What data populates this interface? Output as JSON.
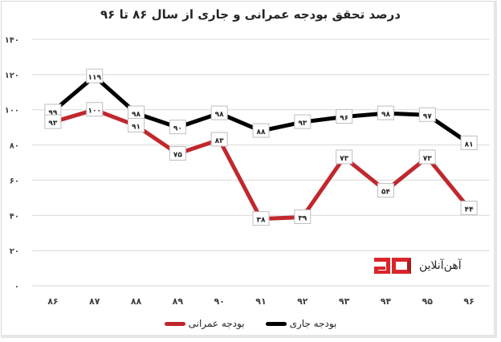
{
  "title": "درصد تحقق بودجه عمرانی و جاری از سال ۸۶ تا ۹۶",
  "legend": {
    "items": [
      {
        "label": "بودجه جاری",
        "color": "#000000"
      },
      {
        "label": "بودجه عمرانی",
        "color": "#c0282d"
      }
    ]
  },
  "brand": {
    "name": "آهن‌آنلاین",
    "color": "#d9262c"
  },
  "y_ticks": [
    "۱۴۰",
    "۱۲۰",
    "۱۰۰",
    "۸۰",
    "۶۰",
    "۴۰",
    "۲۰",
    "۰"
  ],
  "chart_data": {
    "type": "line",
    "title": "درصد تحقق بودجه عمرانی و جاری از سال ۸۶ تا ۹۶",
    "xlabel": "",
    "ylabel": "",
    "ylim": [
      0,
      140
    ],
    "grid": true,
    "legend_position": "bottom",
    "categories": [
      "۸۶",
      "۸۷",
      "۸۸",
      "۸۹",
      "۹۰",
      "۹۱",
      "۹۲",
      "۹۳",
      "۹۴",
      "۹۵",
      "۹۶"
    ],
    "series": [
      {
        "name": "بودجه جاری",
        "color": "#000000",
        "values": [
          99,
          119,
          98,
          90,
          98,
          88,
          93,
          96,
          98,
          97,
          81
        ],
        "labels": [
          "۹۹",
          "۱۱۹",
          "۹۸",
          "۹۰",
          "۹۸",
          "۸۸",
          "۹۳",
          "۹۶",
          "۹۸",
          "۹۷",
          "۸۱"
        ]
      },
      {
        "name": "بودجه عمرانی",
        "color": "#c0282d",
        "values": [
          93,
          100,
          91,
          75,
          83,
          38,
          39,
          73,
          54,
          73,
          44
        ],
        "labels": [
          "۹۳",
          "۱۰۰",
          "۹۱",
          "۷۵",
          "۸۳",
          "۳۸",
          "۳۹",
          "۷۳",
          "۵۴",
          "۷۳",
          "۴۴"
        ]
      }
    ]
  }
}
